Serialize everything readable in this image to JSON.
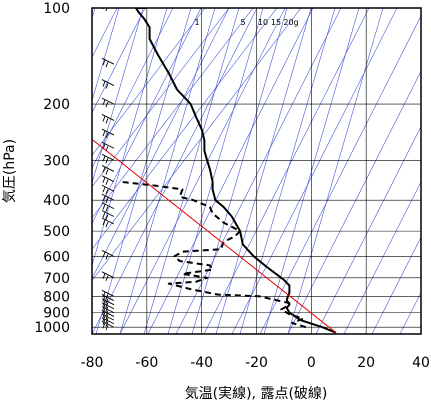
{
  "chart_data": {
    "type": "line",
    "title": "",
    "xlabel": "気温(実線), 露点(破線)",
    "ylabel": "気圧(hPa)",
    "x_ticks": [
      -80,
      -60,
      -40,
      -20,
      0,
      20,
      40
    ],
    "y_ticks": [
      100,
      200,
      300,
      400,
      500,
      600,
      700,
      800,
      900,
      1000
    ],
    "xlim": [
      -80,
      40
    ],
    "ylim": [
      1050,
      100
    ],
    "yscale": "log",
    "grid": true,
    "mixing_ratio_labels": [
      "1",
      "5",
      "10",
      "15",
      "20g"
    ],
    "colors": {
      "temperature": "#000000",
      "dewpoint": "#000000",
      "parcel": "#e00000",
      "auxiliary": "#4a5ad8",
      "grid": "#000000"
    },
    "series": [
      {
        "role": "temperature",
        "style": "solid",
        "points": [
          [
            9,
            1040
          ],
          [
            4,
            1000
          ],
          [
            -4,
            950
          ],
          [
            -8,
            900
          ],
          [
            -9,
            870
          ],
          [
            -8,
            850
          ],
          [
            -9,
            820
          ],
          [
            -8,
            780
          ],
          [
            -8,
            740
          ],
          [
            -10,
            710
          ],
          [
            -16,
            650
          ],
          [
            -21,
            600
          ],
          [
            -25,
            550
          ],
          [
            -26,
            500
          ],
          [
            -29,
            450
          ],
          [
            -32,
            420
          ],
          [
            -35,
            400
          ],
          [
            -36,
            370
          ],
          [
            -36,
            350
          ],
          [
            -37,
            320
          ],
          [
            -38,
            300
          ],
          [
            -39,
            280
          ],
          [
            -39,
            260
          ],
          [
            -40,
            240
          ],
          [
            -42,
            220
          ],
          [
            -44,
            200
          ],
          [
            -49,
            180
          ],
          [
            -52,
            160
          ],
          [
            -56,
            140
          ],
          [
            -59,
            125
          ],
          [
            -59,
            115
          ],
          [
            -61,
            108
          ],
          [
            -63,
            103
          ],
          [
            -64,
            100
          ],
          [
            -60,
            100
          ]
        ]
      },
      {
        "role": "dewpoint",
        "style": "dashed",
        "points": [
          [
            -2,
            1000
          ],
          [
            -7,
            970
          ],
          [
            -3,
            940
          ],
          [
            -8,
            910
          ],
          [
            -11,
            880
          ],
          [
            -9,
            860
          ],
          [
            -8,
            840
          ],
          [
            -19,
            800
          ],
          [
            -34,
            790
          ],
          [
            -44,
            760
          ],
          [
            -52,
            730
          ],
          [
            -42,
            720
          ],
          [
            -38,
            700
          ],
          [
            -47,
            680
          ],
          [
            -36,
            660
          ],
          [
            -37,
            640
          ],
          [
            -48,
            620
          ],
          [
            -50,
            600
          ],
          [
            -47,
            580
          ],
          [
            -33,
            570
          ],
          [
            -32,
            540
          ],
          [
            -28,
            520
          ],
          [
            -26,
            500
          ],
          [
            -32,
            470
          ],
          [
            -36,
            440
          ],
          [
            -37,
            420
          ],
          [
            -43,
            400
          ],
          [
            -48,
            390
          ],
          [
            -47,
            370
          ],
          [
            -57,
            360
          ],
          [
            -70,
            350
          ]
        ]
      },
      {
        "role": "parcel",
        "style": "solid",
        "points": [
          [
            9,
            1040
          ],
          [
            -82,
            250
          ]
        ]
      }
    ],
    "wind_barbs": {
      "x": -72,
      "levels": [
        100,
        150,
        175,
        200,
        225,
        250,
        275,
        300,
        325,
        350,
        375,
        400,
        425,
        450,
        475,
        600,
        700,
        800,
        825,
        850,
        875,
        900,
        925,
        950,
        975,
        1000
      ]
    }
  }
}
